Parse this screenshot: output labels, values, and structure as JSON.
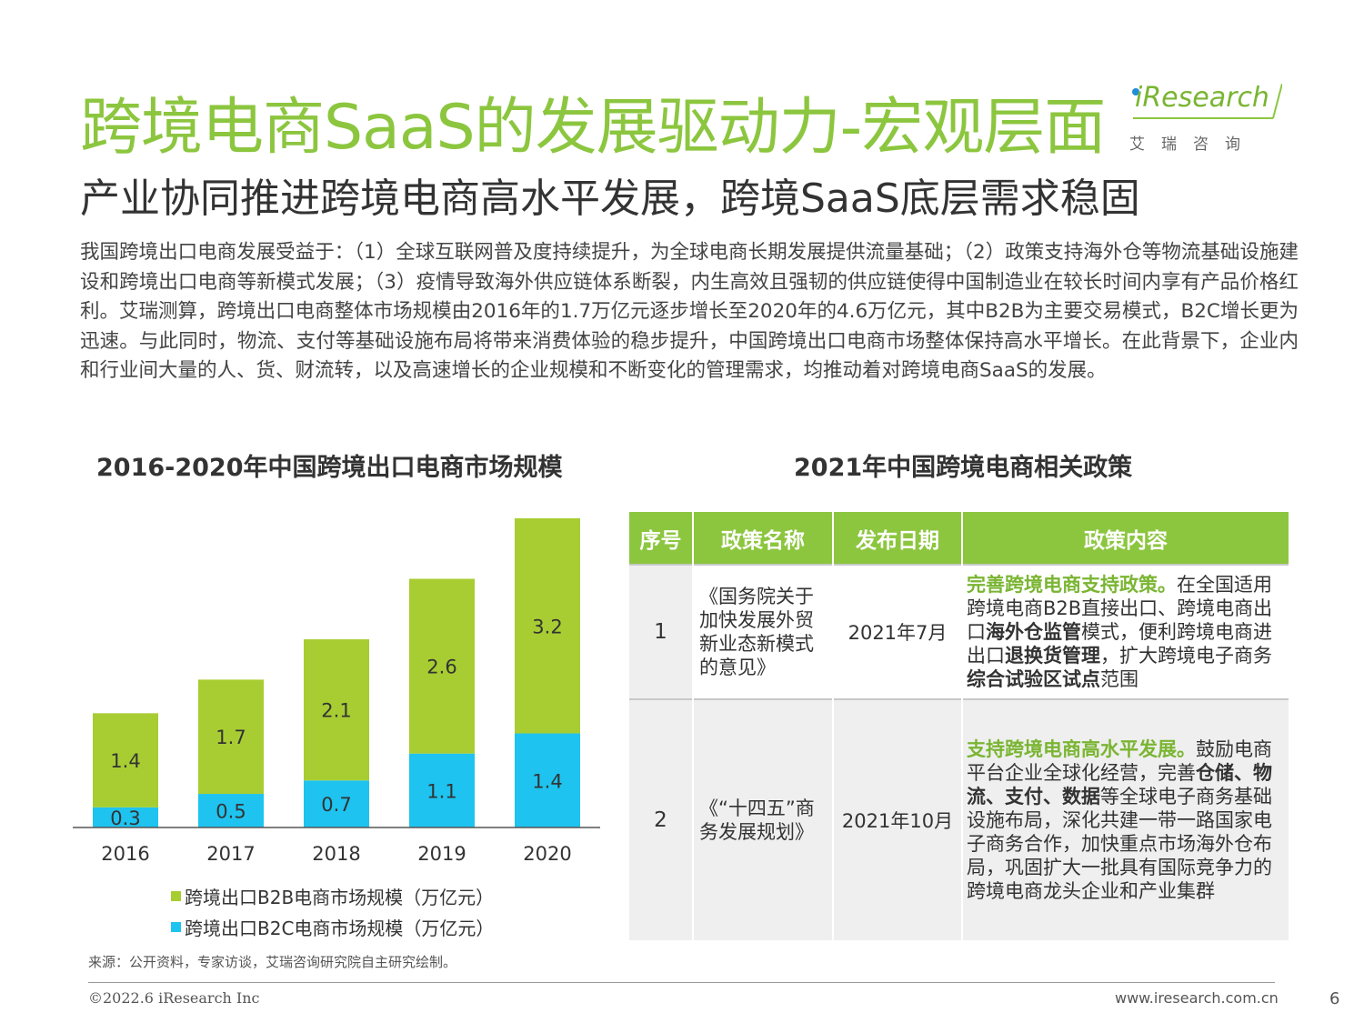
{
  "header": {
    "title": "跨境电商SaaS的发展驱动力-宏观层面",
    "subtitle": "产业协同推进跨境电商高水平发展，跨境SaaS底层需求稳固"
  },
  "logo": {
    "text": "iResearch",
    "sub": "艾瑞咨询"
  },
  "intro": "我国跨境出口电商发展受益于：（1）全球互联网普及度持续提升，为全球电商长期发展提供流量基础；（2）政策支持海外仓等物流基础设施建设和跨境出口电商等新模式发展；（3）疫情导致海外供应链体系断裂，内生高效且强韧的供应链使得中国制造业在较长时间内享有产品价格红利。艾瑞测算，跨境出口电商整体市场规模由2016年的1.7万亿元逐步增长至2020年的4.6万亿元，其中B2B为主要交易模式，B2C增长更为迅速。与此同时，物流、支付等基础设施布局将带来消费体验的稳步提升，中国跨境出口电商市场整体保持高水平增长。在此背景下，企业内和行业间大量的人、货、财流转，以及高速增长的企业规模和不断变化的管理需求，均推动着对跨境电商SaaS的发展。",
  "chart_title": "2016-2020年中国跨境出口电商市场规模",
  "chart_data": {
    "type": "bar",
    "stacked": true,
    "categories": [
      "2016",
      "2017",
      "2018",
      "2019",
      "2020"
    ],
    "series": [
      {
        "name": "跨境出口B2C电商市场规模（万亿元）",
        "values": [
          0.3,
          0.5,
          0.7,
          1.1,
          1.4
        ],
        "color": "#1ec3ef"
      },
      {
        "name": "跨境出口B2B电商市场规模（万亿元）",
        "values": [
          1.4,
          1.7,
          2.1,
          2.6,
          3.2
        ],
        "color": "#a8cd32"
      }
    ],
    "title": "2016-2020年中国跨境出口电商市场规模",
    "ylim": [
      0,
      4.6
    ],
    "grid": false,
    "legend": "bottom"
  },
  "legend": {
    "b2b": "跨境出口B2B电商市场规模（万亿元）",
    "b2c": "跨境出口B2C电商市场规模（万亿元）"
  },
  "table_title": "2021年中国跨境电商相关政策",
  "table": {
    "headers": [
      "序号",
      "政策名称",
      "发布日期",
      "政策内容"
    ],
    "rows": [
      {
        "num": "1",
        "name": "《国务院关于加快发展外贸新业态新模式的意见》",
        "date": "2021年7月",
        "content": [
          {
            "t": "完善跨境电商支持政策。",
            "s": "green"
          },
          {
            "t": "在全国适用跨境电商B2B直接出口、跨境电商出口",
            "s": ""
          },
          {
            "t": "海外仓监管",
            "s": "bold"
          },
          {
            "t": "模式，便利跨境电商进出口",
            "s": ""
          },
          {
            "t": "退换货管理",
            "s": "bold"
          },
          {
            "t": "，扩大跨境电子商务",
            "s": ""
          },
          {
            "t": "综合试验区试点",
            "s": "bold"
          },
          {
            "t": "范围",
            "s": ""
          }
        ]
      },
      {
        "num": "2",
        "name": "《“十四五”商务发展规划》",
        "date": "2021年10月",
        "content": [
          {
            "t": "支持跨境电商高水平发展。",
            "s": "green"
          },
          {
            "t": "鼓励电商平台企业全球化经营，完善",
            "s": ""
          },
          {
            "t": "仓储、物流、支付、数据",
            "s": "bold"
          },
          {
            "t": "等全球电子商务基础设施布局，深化共建一带一路国家电子商务合作，加快重点市场海外仓布局，巩固扩大一批具有国际竞争力的跨境电商龙头企业和产业集群",
            "s": ""
          }
        ]
      }
    ]
  },
  "footer": {
    "source": "来源：公开资料，专家访谈，艾瑞咨询研究院自主研究绘制。",
    "copyright": "©2022.6 iResearch Inc",
    "website": "www.iresearch.com.cn",
    "page": "6"
  },
  "colors": {
    "accent": "#8cc63f",
    "b2b": "#a8cd32",
    "b2c": "#1ec3ef"
  }
}
